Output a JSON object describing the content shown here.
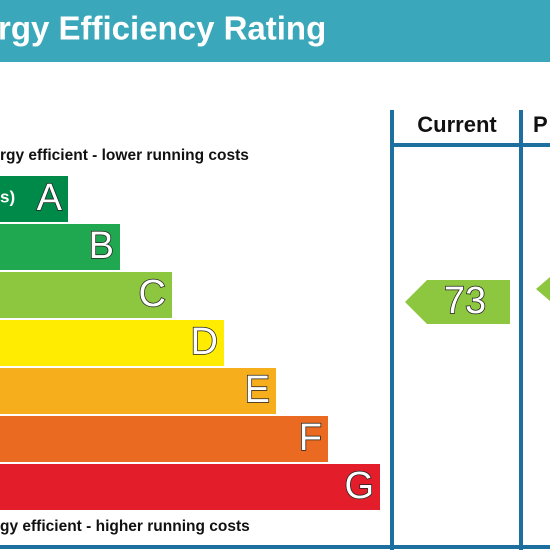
{
  "header": {
    "title": "rgy Efficiency Rating"
  },
  "columns": [
    "Current",
    "P"
  ],
  "top_note": "rgy efficient - lower running costs",
  "bottom_note": "gy efficient - higher running costs",
  "bands": [
    {
      "letter": "A",
      "prefix": "s)",
      "color": "#008a4a"
    },
    {
      "letter": "B",
      "color": "#1fa84f"
    },
    {
      "letter": "C",
      "color": "#8dc63f"
    },
    {
      "letter": "D",
      "color": "#ffec00"
    },
    {
      "letter": "E",
      "color": "#f7ae1d"
    },
    {
      "letter": "F",
      "color": "#eb6a21"
    },
    {
      "letter": "G",
      "color": "#e31d2a"
    }
  ],
  "current": {
    "value": 73,
    "color": "#8dc63f"
  }
}
